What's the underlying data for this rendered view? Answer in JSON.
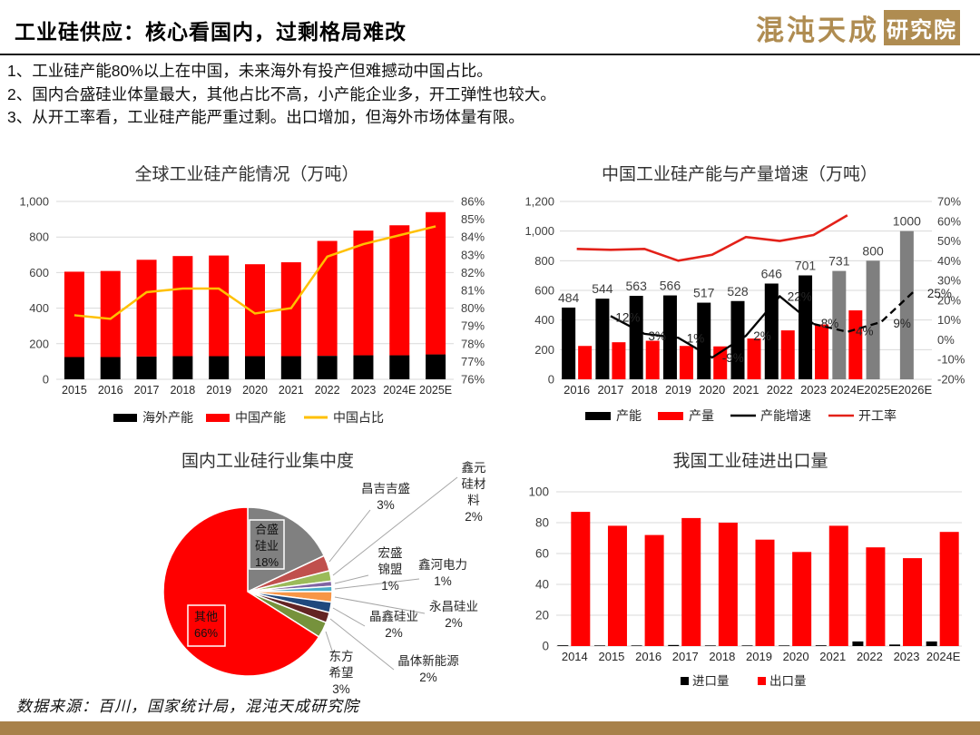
{
  "page": {
    "title": "工业硅供应：核心看国内，过剩格局难改",
    "logo_text": "混沌天成",
    "logo_badge": "研究院",
    "brand_gold": "#AF8C51",
    "bottom_bar_color": "#A8814A",
    "bullets": [
      "1、工业硅产能80%以上在中国，未来海外有投产但难撼动中国占比。",
      "2、国内合盛硅业体量最大，其他占比不高，小产能企业多，开工弹性也较大。",
      "3、从开工率看，工业硅产能严重过剩。出口增加，但海外市场体量有限。"
    ],
    "footer": "数据来源：百川，国家统计局，混沌天成研究院"
  },
  "chart_data": [
    {
      "id": "global-silicon-capacity",
      "type": "bar",
      "title": "全球工业硅产能情况（万吨）",
      "categories": [
        "2015",
        "2016",
        "2017",
        "2018",
        "2019",
        "2020",
        "2021",
        "2022",
        "2023",
        "2024E",
        "2025E"
      ],
      "left_axis": {
        "min": 0,
        "max": 1000,
        "step": 200
      },
      "right_axis": {
        "min": 76,
        "max": 86,
        "step": 1,
        "format": "%"
      },
      "grid": true,
      "legend_position": "bottom",
      "series": [
        {
          "name": "海外产能",
          "type": "bar-stacked",
          "color": "#000000",
          "values": [
            125,
            125,
            128,
            130,
            130,
            130,
            130,
            132,
            135,
            135,
            140
          ]
        },
        {
          "name": "中国产能",
          "type": "bar-stacked",
          "color": "#FF0000",
          "values": [
            480,
            484,
            544,
            563,
            566,
            517,
            528,
            646,
            701,
            731,
            800
          ]
        },
        {
          "name": "中国占比",
          "type": "line",
          "axis": "right",
          "color": "#FFC000",
          "values": [
            79.6,
            79.4,
            80.9,
            81.1,
            81.1,
            79.7,
            80.0,
            82.9,
            83.6,
            84.1,
            84.6
          ]
        }
      ]
    },
    {
      "id": "china-capacity-production-growth",
      "type": "bar",
      "title": "中国工业硅产能与产量增速（万吨）",
      "categories": [
        "2016",
        "2017",
        "2018",
        "2019",
        "2020",
        "2021",
        "2022",
        "2023",
        "2024E",
        "2025E",
        "2026E"
      ],
      "left_axis": {
        "min": 0,
        "max": 1200,
        "step": 200
      },
      "right_axis": {
        "min": -20,
        "max": 70,
        "step": 10,
        "format": "%"
      },
      "grid": true,
      "legend_position": "bottom",
      "estimate_bar_color": "#7F7F7F",
      "estimate_from_index": 8,
      "series": [
        {
          "name": "产能",
          "type": "bar",
          "color": "#000000",
          "values": [
            484,
            544,
            563,
            566,
            517,
            528,
            646,
            701,
            731,
            800,
            1000
          ],
          "value_labels": [
            "484",
            "544",
            "563",
            "566",
            "517",
            "528",
            "646",
            "701",
            "731",
            "800",
            "1000"
          ]
        },
        {
          "name": "产量",
          "type": "bar",
          "color": "#FF0000",
          "values": [
            225,
            250,
            260,
            225,
            222,
            275,
            330,
            370,
            465,
            null,
            null
          ]
        },
        {
          "name": "产能增速",
          "type": "line",
          "axis": "right",
          "color": "#000000",
          "dashed_from_index": 7,
          "values": [
            null,
            12,
            3,
            1,
            -9,
            2,
            22,
            8,
            4,
            9,
            25
          ],
          "point_labels": [
            "",
            "12%",
            "3%",
            "1%",
            "-9%",
            "2%",
            "22%",
            "8%",
            "4%",
            "9%",
            "25%"
          ]
        },
        {
          "name": "开工率",
          "type": "line",
          "axis": "right",
          "color": "#E32119",
          "values": [
            46,
            45.5,
            46,
            40,
            43,
            52,
            50,
            53,
            63,
            null,
            null
          ]
        }
      ]
    },
    {
      "id": "domestic-industry-concentration",
      "type": "pie",
      "title": "国内工业硅行业集中度",
      "slices": [
        {
          "label": "合盛硅业",
          "pct": 18,
          "color": "#808080",
          "placement": "inside-box"
        },
        {
          "label": "昌吉吉盛",
          "pct": 3,
          "color": "#C0504D",
          "placement": "outside"
        },
        {
          "label": "鑫元硅材料",
          "pct": 2,
          "color": "#9BBB59",
          "placement": "outside"
        },
        {
          "label": "宏盛锦盟",
          "pct": 1,
          "color": "#8064A2",
          "placement": "outside"
        },
        {
          "label": "鑫河电力",
          "pct": 1,
          "color": "#4BACC6",
          "placement": "outside"
        },
        {
          "label": "永昌硅业",
          "pct": 2,
          "color": "#F79646",
          "placement": "outside"
        },
        {
          "label": "晶鑫硅业",
          "pct": 2,
          "color": "#1F497D",
          "placement": "outside"
        },
        {
          "label": "晶体新能源",
          "pct": 2,
          "color": "#632423",
          "placement": "outside"
        },
        {
          "label": "东方希望",
          "pct": 3,
          "color": "#76923C",
          "placement": "outside"
        },
        {
          "label": "其他",
          "pct": 66,
          "color": "#FF0000",
          "placement": "inside-box"
        }
      ]
    },
    {
      "id": "china-import-export",
      "type": "bar",
      "title": "我国工业硅进出口量",
      "categories": [
        "2014",
        "2015",
        "2016",
        "2017",
        "2018",
        "2019",
        "2020",
        "2021",
        "2022",
        "2023",
        "2024E"
      ],
      "left_axis": {
        "min": 0,
        "max": 100,
        "step": 20
      },
      "grid": true,
      "legend_position": "bottom",
      "series": [
        {
          "name": "进口量",
          "type": "bar",
          "color": "#000000",
          "values": [
            0.5,
            0.4,
            0.4,
            0.7,
            0.4,
            0.4,
            0.4,
            0.5,
            3,
            1,
            3
          ]
        },
        {
          "name": "出口量",
          "type": "bar",
          "color": "#FF0000",
          "values": [
            87,
            78,
            72,
            83,
            80,
            69,
            61,
            78,
            64,
            57,
            74
          ]
        }
      ]
    }
  ]
}
